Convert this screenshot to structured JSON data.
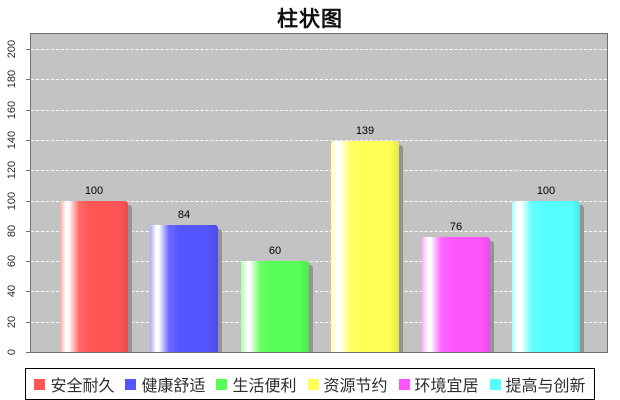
{
  "chart_data": {
    "type": "bar",
    "title": "柱状图",
    "categories": [
      "安全耐久",
      "健康舒适",
      "生活便利",
      "资源节约",
      "环境宜居",
      "提高与创新"
    ],
    "values": [
      100,
      84,
      60,
      139,
      76,
      100
    ],
    "value_labels": [
      "100",
      "84",
      "60",
      "139",
      "76",
      "100"
    ],
    "bar_colors": [
      "#ff5555",
      "#5555ff",
      "#55ff55",
      "#ffff55",
      "#ff55ff",
      "#55ffff"
    ],
    "xlabel": "",
    "ylabel": "",
    "ylim": [
      0,
      200
    ],
    "ytick_step": 20,
    "y_tick_labels": [
      "0",
      "20",
      "40",
      "60",
      "80",
      "100",
      "120",
      "140",
      "160",
      "180",
      "200"
    ],
    "grid": true,
    "grid_style": "white-dashed",
    "legend": {
      "position": "bottom",
      "entries": [
        "安全耐久",
        "健康舒适",
        "生活便利",
        "资源节约",
        "环境宜居",
        "提高与创新"
      ]
    },
    "style": {
      "plot_background": "#c3c3c3",
      "plot_border": "#6e6e6e",
      "gridline_color": "#ffffff",
      "bar_shadow_color": "#939393",
      "title_color": "#111111",
      "tick_label_color": "#2b2b2b",
      "value_label_color": "#000000",
      "legend_text_color": "#2e2e2e",
      "legend_border_color": "#000000",
      "page_background": "#ffffff"
    }
  }
}
